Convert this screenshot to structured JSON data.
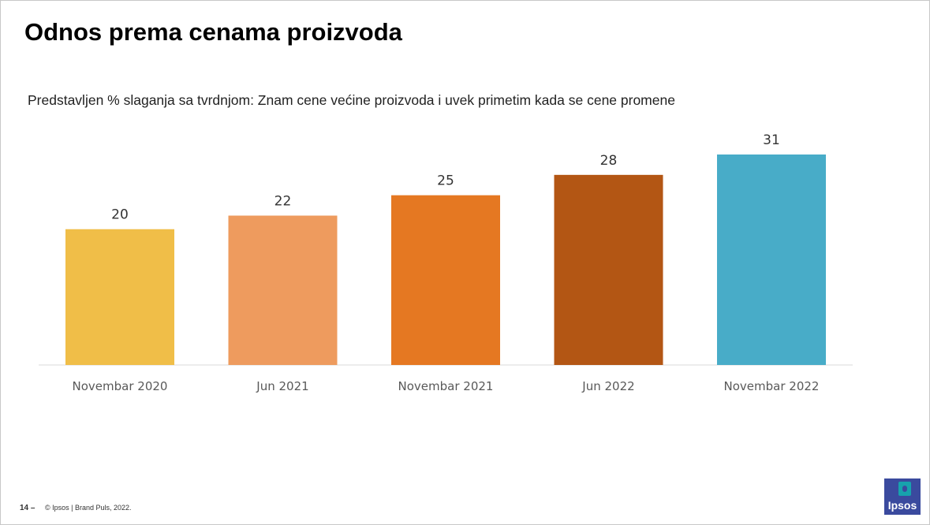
{
  "title": "Odnos prema cenama proizvoda",
  "subtitle": "Predstavljen % slaganja sa tvrdnjom: Znam cene većine proizvoda i uvek primetim kada se cene promene",
  "footer": {
    "page_label": "14 –",
    "copyright": "© Ipsos | Brand Puls, 2022."
  },
  "logo": {
    "text": "Ipsos"
  },
  "chart_data": {
    "type": "bar",
    "categories": [
      "Novembar 2020",
      "Jun 2021",
      "Novembar 2021",
      "Jun 2022",
      "Novembar 2022"
    ],
    "values": [
      20,
      22,
      25,
      28,
      31
    ],
    "colors": [
      "#F0BE48",
      "#EE9B5E",
      "#E57822",
      "#B35614",
      "#48ACC8"
    ],
    "title": "",
    "xlabel": "",
    "ylabel": "",
    "ylim": [
      0,
      31
    ],
    "grid": false,
    "legend": "none",
    "data_labels": true
  }
}
